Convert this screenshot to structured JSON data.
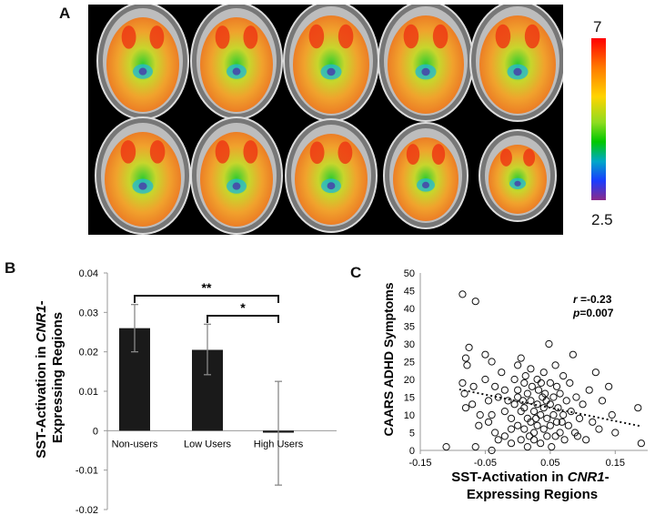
{
  "panels": {
    "a": "A",
    "b": "B",
    "c": "C"
  },
  "colorbar": {
    "max": "7",
    "min": "2.5"
  },
  "chart_data": [
    {
      "type": "bar",
      "ylabel_parts": [
        "SST-Activation in ",
        "CNR1",
        "-",
        "Expressing Regions"
      ],
      "categories": [
        "Non-users",
        "Low Users",
        "High Users"
      ],
      "values": [
        0.026,
        0.0205,
        -0.0005
      ],
      "error_low": [
        0.02,
        0.0142,
        -0.0138
      ],
      "error_high": [
        0.032,
        0.027,
        0.0125
      ],
      "ylim": [
        -0.02,
        0.04
      ],
      "yticks": [
        "-0.02",
        "-0.01",
        "0",
        "0.01",
        "0.02",
        "0.03",
        "0.04"
      ],
      "ytick_values": [
        -0.02,
        -0.01,
        0,
        0.01,
        0.02,
        0.03,
        0.04
      ],
      "significance": [
        {
          "from": 0,
          "to": 2,
          "label": "**"
        },
        {
          "from": 1,
          "to": 2,
          "label": "*"
        }
      ],
      "bar_color": "#1a1a1a"
    },
    {
      "type": "scatter",
      "ylabel": "CAARS ADHD Symptoms",
      "xlabel_parts": [
        "SST-Activation in ",
        "CNR1",
        "-",
        "Expressing Regions"
      ],
      "xlim": [
        -0.15,
        0.2
      ],
      "ylim": [
        0,
        50
      ],
      "xticks": [
        "-0.15",
        "-0.05",
        "0.05",
        "0.15"
      ],
      "xtick_values": [
        -0.15,
        -0.05,
        0.05,
        0.15
      ],
      "yticks": [
        "0",
        "5",
        "10",
        "15",
        "20",
        "25",
        "30",
        "35",
        "40",
        "45",
        "50"
      ],
      "ytick_values": [
        0,
        5,
        10,
        15,
        20,
        25,
        30,
        35,
        40,
        45,
        50
      ],
      "stat_r_label": "r",
      "stat_r_value": " =-0.23",
      "stat_p_label": "p",
      "stat_p_value": "=0.007",
      "trend": {
        "x": [
          -0.09,
          0.19
        ],
        "y": [
          17.2,
          6.8
        ]
      },
      "points": [
        [
          -0.085,
          44
        ],
        [
          -0.065,
          42
        ],
        [
          -0.075,
          29
        ],
        [
          -0.08,
          26
        ],
        [
          -0.078,
          24
        ],
        [
          -0.085,
          19
        ],
        [
          -0.082,
          16
        ],
        [
          -0.068,
          18
        ],
        [
          -0.07,
          13
        ],
        [
          -0.08,
          12
        ],
        [
          -0.11,
          1
        ],
        [
          -0.065,
          1
        ],
        [
          -0.04,
          25
        ],
        [
          -0.03,
          15
        ],
        [
          -0.05,
          27
        ],
        [
          -0.05,
          20
        ],
        [
          -0.045,
          14
        ],
        [
          -0.04,
          10
        ],
        [
          -0.035,
          5
        ],
        [
          -0.03,
          3
        ],
        [
          -0.045,
          8
        ],
        [
          -0.04,
          0
        ],
        [
          -0.035,
          18
        ],
        [
          -0.025,
          22
        ],
        [
          -0.02,
          17
        ],
        [
          -0.02,
          11
        ],
        [
          -0.02,
          4
        ],
        [
          -0.015,
          14
        ],
        [
          -0.01,
          9
        ],
        [
          -0.01,
          2
        ],
        [
          -0.005,
          20
        ],
        [
          -0.005,
          13
        ],
        [
          0.0,
          24
        ],
        [
          0.0,
          7
        ],
        [
          0.0,
          15
        ],
        [
          0.005,
          26
        ],
        [
          0.005,
          11
        ],
        [
          0.005,
          3
        ],
        [
          0.01,
          19
        ],
        [
          0.01,
          12
        ],
        [
          0.01,
          6
        ],
        [
          0.012,
          21
        ],
        [
          0.015,
          16
        ],
        [
          0.015,
          9
        ],
        [
          0.015,
          1
        ],
        [
          0.02,
          23
        ],
        [
          0.02,
          14
        ],
        [
          0.02,
          8
        ],
        [
          0.022,
          18
        ],
        [
          0.025,
          11
        ],
        [
          0.025,
          5
        ],
        [
          0.025,
          3
        ],
        [
          0.03,
          20
        ],
        [
          0.03,
          13
        ],
        [
          0.03,
          7
        ],
        [
          0.032,
          17
        ],
        [
          0.035,
          10
        ],
        [
          0.035,
          2
        ],
        [
          0.038,
          15
        ],
        [
          0.04,
          22
        ],
        [
          0.04,
          12
        ],
        [
          0.04,
          6
        ],
        [
          0.042,
          16
        ],
        [
          0.045,
          9
        ],
        [
          0.045,
          4
        ],
        [
          0.048,
          30
        ],
        [
          0.05,
          19
        ],
        [
          0.05,
          13
        ],
        [
          0.05,
          7
        ],
        [
          0.052,
          1
        ],
        [
          0.055,
          15
        ],
        [
          0.055,
          10
        ],
        [
          0.058,
          24
        ],
        [
          0.06,
          18
        ],
        [
          0.06,
          8
        ],
        [
          0.062,
          12
        ],
        [
          0.065,
          5
        ],
        [
          0.065,
          16
        ],
        [
          0.07,
          21
        ],
        [
          0.07,
          10
        ],
        [
          0.072,
          3
        ],
        [
          0.075,
          14
        ],
        [
          0.078,
          7
        ],
        [
          0.08,
          19
        ],
        [
          0.082,
          11
        ],
        [
          0.085,
          27
        ],
        [
          0.088,
          5
        ],
        [
          0.09,
          15
        ],
        [
          0.095,
          9
        ],
        [
          0.1,
          13
        ],
        [
          0.105,
          3
        ],
        [
          0.11,
          17
        ],
        [
          0.12,
          22
        ],
        [
          0.125,
          6
        ],
        [
          0.13,
          14
        ],
        [
          0.14,
          18
        ],
        [
          0.145,
          10
        ],
        [
          0.15,
          5
        ],
        [
          0.185,
          12
        ],
        [
          0.19,
          2
        ],
        [
          -0.06,
          7
        ],
        [
          -0.058,
          10
        ],
        [
          0.0,
          17
        ],
        [
          0.018,
          4
        ],
        [
          0.028,
          9
        ],
        [
          0.044,
          14
        ],
        [
          0.058,
          4
        ],
        [
          0.068,
          8
        ],
        [
          -0.01,
          6
        ],
        [
          0.008,
          14
        ],
        [
          0.036,
          19
        ],
        [
          0.092,
          4
        ],
        [
          0.115,
          8
        ]
      ]
    }
  ]
}
